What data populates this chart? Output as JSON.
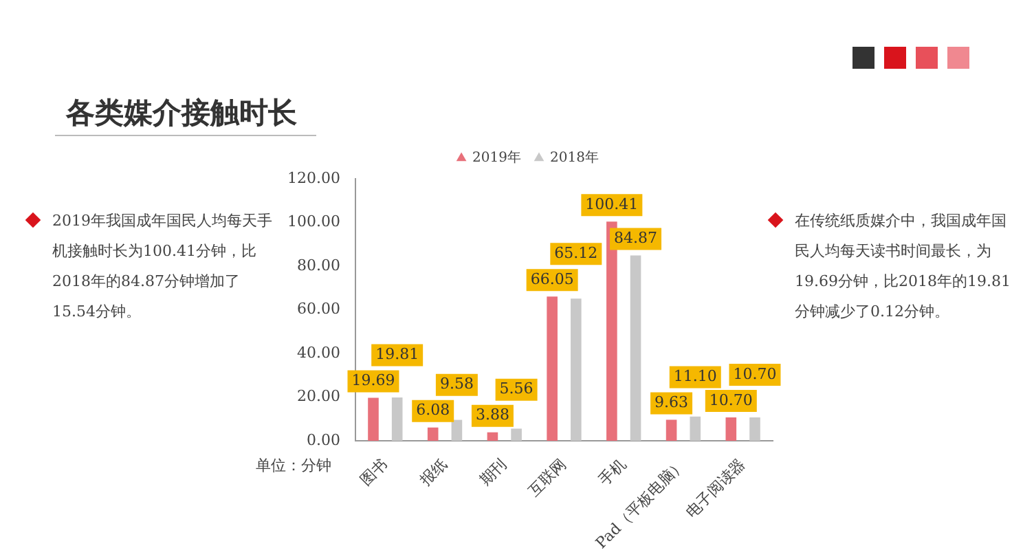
{
  "chart_data": {
    "type": "bar",
    "title": "各类媒介接触时长",
    "categories": [
      "图书",
      "报纸",
      "期刊",
      "互联网",
      "手机",
      "Pad（平板电脑）",
      "电子阅读器"
    ],
    "series": [
      {
        "name": "2019年",
        "color": "#e8707a",
        "values": [
          19.69,
          6.08,
          3.88,
          66.05,
          100.41,
          9.63,
          10.7
        ],
        "value_labels": [
          "19.69",
          "6.08",
          "3.88",
          "66.05",
          "100.41",
          "9.63",
          "10.70"
        ]
      },
      {
        "name": "2018年",
        "color": "#c8c8c8",
        "values": [
          19.81,
          9.58,
          5.56,
          65.12,
          84.87,
          11.1,
          10.7
        ],
        "value_labels": [
          "19.81",
          "9.58",
          "5.56",
          "65.12",
          "84.87",
          "11.10",
          "10.70"
        ]
      }
    ],
    "ylim": [
      0,
      120
    ],
    "yticks": [
      {
        "value": 0,
        "label": "0.00"
      },
      {
        "value": 20,
        "label": "20.00"
      },
      {
        "value": 40,
        "label": "40.00"
      },
      {
        "value": 60,
        "label": "60.00"
      },
      {
        "value": 80,
        "label": "80.00"
      },
      {
        "value": 100,
        "label": "100.00"
      },
      {
        "value": 120,
        "label": "120.00"
      }
    ],
    "grid": false,
    "legend": "top",
    "annotations": [
      "单位：分钟",
      "2019年我国成年国民人均每天手机接触时长为100.41分钟，比2018年的84.87分钟增加了15.54分钟。",
      "在传统纸质媒介中，我国成年国民人均每天读书时间最长，为19.69分钟，比2018年的19.81分钟减少了0.12分钟。"
    ]
  }
}
